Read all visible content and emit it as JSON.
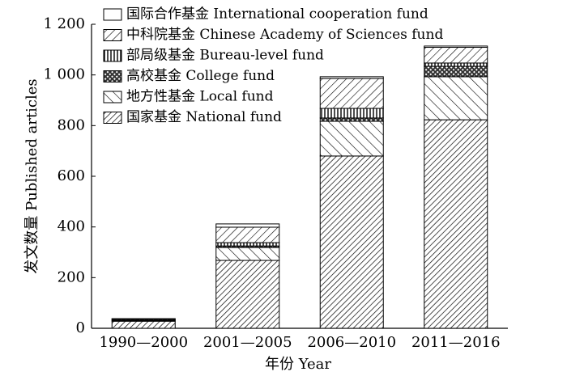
{
  "chart_data": {
    "type": "stacked-bar",
    "y_label": "发文数量 Published articles",
    "x_label": "年份 Year",
    "categories": [
      "1990—2000",
      "2001—2005",
      "2006—2010",
      "2011—2016"
    ],
    "series": [
      {
        "name": "国家基金 National fund",
        "pattern": "diag-dense",
        "values": [
          28,
          268,
          680,
          823
        ]
      },
      {
        "name": "地方性基金 Local fund",
        "pattern": "backdiag",
        "values": [
          3,
          51,
          137,
          170
        ]
      },
      {
        "name": "高校基金 College fund",
        "pattern": "cross",
        "values": [
          4,
          6,
          13,
          41
        ]
      },
      {
        "name": "部局级基金 Bureau-level fund",
        "pattern": "vertical",
        "values": [
          2,
          13,
          38,
          13
        ]
      },
      {
        "name": "中科院基金 Chinese Academy of Sciences fund",
        "pattern": "diag",
        "values": [
          1,
          61,
          118,
          62
        ]
      },
      {
        "name": "国际合作基金 International cooperation fund",
        "pattern": "white",
        "values": [
          0,
          13,
          7,
          5
        ]
      }
    ],
    "ylim": [
      0,
      1200
    ],
    "yticks": [
      0,
      200,
      400,
      600,
      800,
      {
        "value": 1000,
        "label": "1 000"
      },
      {
        "value": 1200,
        "label": "1 200"
      }
    ],
    "legend": "top-left"
  }
}
